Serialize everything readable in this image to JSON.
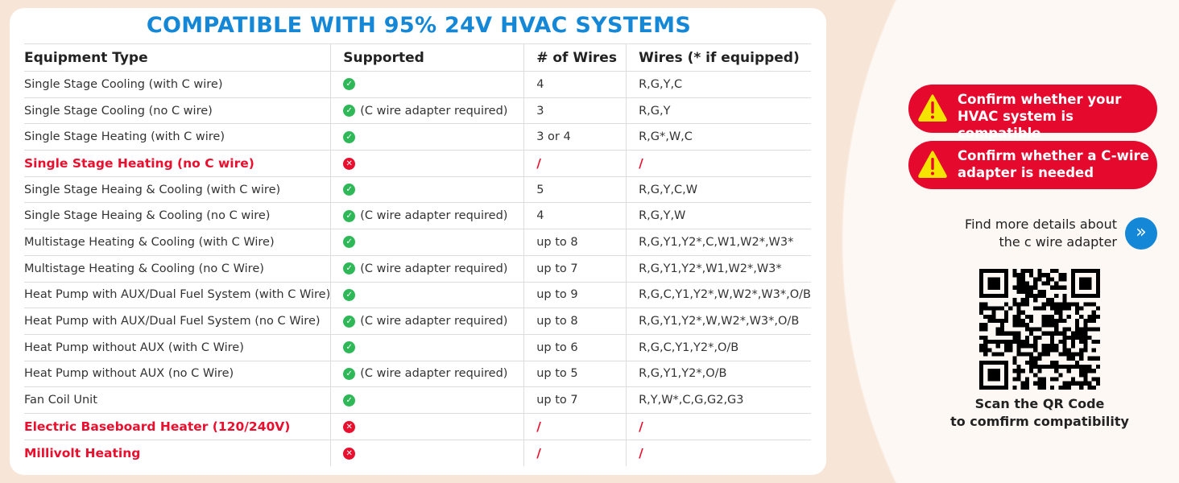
{
  "title": "COMPATIBLE WITH 95% 24V HVAC SYSTEMS",
  "colors": {
    "accent": "#1487d6",
    "alert": "#e6092e",
    "ok": "#2fb857"
  },
  "table": {
    "headers": [
      "Equipment Type",
      "Supported",
      "# of Wires",
      "Wires (* if equipped)"
    ],
    "rows": [
      {
        "type": "Single Stage Cooling (with C wire)",
        "supported": true,
        "note": "",
        "wires": "4",
        "list": "R,G,Y,C"
      },
      {
        "type": "Single Stage Cooling (no C wire)",
        "supported": true,
        "note": "(C wire adapter required)",
        "wires": "3",
        "list": "R,G,Y"
      },
      {
        "type": "Single Stage Heating (with C wire)",
        "supported": true,
        "note": "",
        "wires": "3 or 4",
        "list": "R,G*,W,C"
      },
      {
        "type": "Single Stage Heating (no C wire)",
        "supported": false,
        "note": "",
        "wires": "/",
        "list": "/"
      },
      {
        "type": "Single Stage Heaing & Cooling (with C wire)",
        "supported": true,
        "note": "",
        "wires": "5",
        "list": "R,G,Y,C,W"
      },
      {
        "type": "Single Stage Heaing & Cooling (no C wire)",
        "supported": true,
        "note": "(C wire adapter required)",
        "wires": "4",
        "list": "R,G,Y,W"
      },
      {
        "type": "Multistage Heating & Cooling (with C Wire)",
        "supported": true,
        "note": "",
        "wires": "up to 8",
        "list": "R,G,Y1,Y2*,C,W1,W2*,W3*"
      },
      {
        "type": "Multistage Heating & Cooling (no C Wire)",
        "supported": true,
        "note": "(C wire adapter required)",
        "wires": "up to 7",
        "list": "R,G,Y1,Y2*,W1,W2*,W3*"
      },
      {
        "type": "Heat Pump with AUX/Dual Fuel System (with C Wire)",
        "supported": true,
        "note": "",
        "wires": "up to 9",
        "list": "R,G,C,Y1,Y2*,W,W2*,W3*,O/B"
      },
      {
        "type": "Heat Pump with AUX/Dual Fuel System (no C Wire)",
        "supported": true,
        "note": "(C wire adapter required)",
        "wires": "up to 8",
        "list": "R,G,Y1,Y2*,W,W2*,W3*,O/B"
      },
      {
        "type": "Heat Pump without AUX (with C Wire)",
        "supported": true,
        "note": "",
        "wires": "up to 6",
        "list": "R,G,C,Y1,Y2*,O/B"
      },
      {
        "type": "Heat Pump without AUX (no C Wire)",
        "supported": true,
        "note": "(C wire adapter required)",
        "wires": "up to 5",
        "list": "R,G,Y1,Y2*,O/B"
      },
      {
        "type": "Fan Coil Unit",
        "supported": true,
        "note": "",
        "wires": "up to 7",
        "list": "R,Y,W*,C,G,G2,G3"
      },
      {
        "type": "Electric Baseboard Heater (120/240V)",
        "supported": false,
        "note": "",
        "wires": "/",
        "list": "/"
      },
      {
        "type": "Millivolt Heating",
        "supported": false,
        "note": "",
        "wires": "/",
        "list": "/"
      }
    ]
  },
  "alerts": [
    "Confirm whether your HVAC system is compatible",
    "Confirm whether a C-wire adapter is needed"
  ],
  "find_more": {
    "line1": "Find more details about",
    "line2": "the c wire adapter"
  },
  "scan": {
    "line1": "Scan the QR Code",
    "line2": "to comfirm compatibility"
  }
}
